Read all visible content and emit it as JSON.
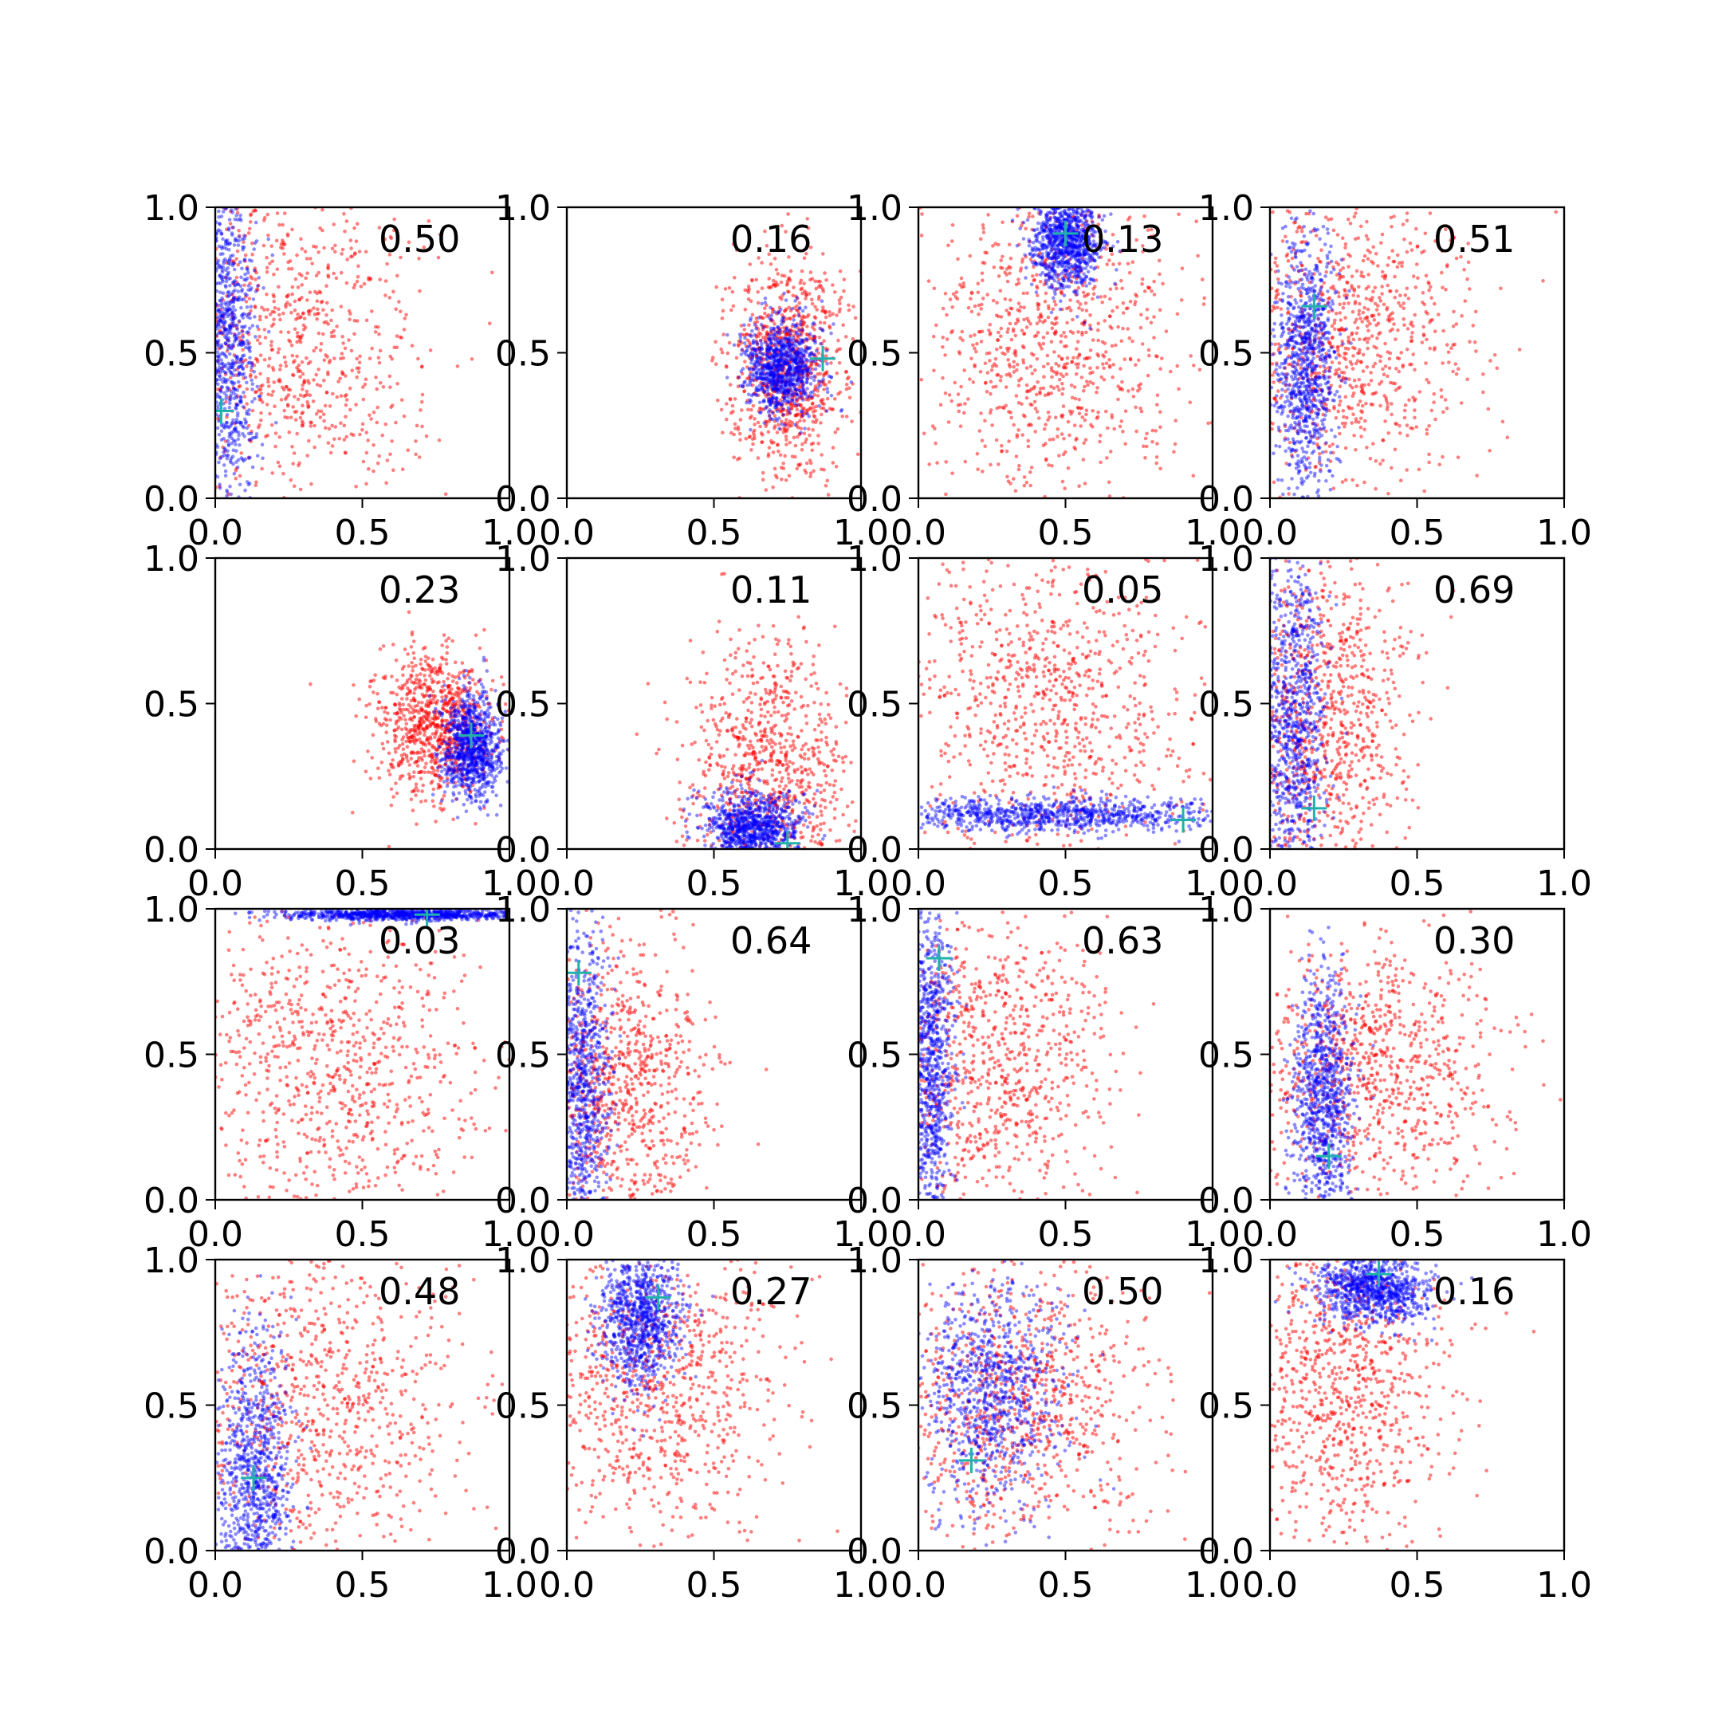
{
  "chart_data": {
    "type": "scatter",
    "layout": "4x4 grid of scatter panels",
    "xlim": [
      0,
      1
    ],
    "ylim": [
      0,
      1
    ],
    "xticks": [
      "0.0",
      "0.5",
      "1.0"
    ],
    "yticks": [
      "0.0",
      "0.5",
      "1.0"
    ],
    "grid": false,
    "series_colors": {
      "red": "#ff0000",
      "blue": "#0000ff",
      "marker": "#20b2aa"
    },
    "panels": [
      {
        "label": "0.50",
        "marker": [
          0.02,
          0.3
        ],
        "red": {
          "center": [
            0.25,
            0.5
          ],
          "spread": [
            0.22,
            0.3
          ]
        },
        "blue": {
          "center": [
            0.04,
            0.55
          ],
          "spread": [
            0.05,
            0.32
          ]
        }
      },
      {
        "label": "0.16",
        "marker": [
          0.87,
          0.48
        ],
        "red": {
          "center": [
            0.75,
            0.45
          ],
          "spread": [
            0.1,
            0.18
          ]
        },
        "blue": {
          "center": [
            0.73,
            0.45
          ],
          "spread": [
            0.06,
            0.08
          ]
        }
      },
      {
        "label": "0.13",
        "marker": [
          0.5,
          0.91
        ],
        "red": {
          "center": [
            0.45,
            0.55
          ],
          "spread": [
            0.22,
            0.28
          ]
        },
        "blue": {
          "center": [
            0.5,
            0.88
          ],
          "spread": [
            0.06,
            0.08
          ]
        }
      },
      {
        "label": "0.51",
        "marker": [
          0.15,
          0.66
        ],
        "red": {
          "center": [
            0.25,
            0.55
          ],
          "spread": [
            0.22,
            0.25
          ]
        },
        "blue": {
          "center": [
            0.12,
            0.45
          ],
          "spread": [
            0.05,
            0.22
          ]
        }
      },
      {
        "label": "0.23",
        "marker": [
          0.87,
          0.39
        ],
        "red": {
          "center": [
            0.75,
            0.43
          ],
          "spread": [
            0.1,
            0.12
          ]
        },
        "blue": {
          "center": [
            0.87,
            0.35
          ],
          "spread": [
            0.05,
            0.09
          ]
        }
      },
      {
        "label": "0.11",
        "marker": [
          0.75,
          0.02
        ],
        "red": {
          "center": [
            0.68,
            0.25
          ],
          "spread": [
            0.14,
            0.22
          ]
        },
        "blue": {
          "center": [
            0.63,
            0.08
          ],
          "spread": [
            0.08,
            0.06
          ]
        }
      },
      {
        "label": "0.05",
        "marker": [
          0.9,
          0.1
        ],
        "red": {
          "center": [
            0.45,
            0.5
          ],
          "spread": [
            0.25,
            0.28
          ]
        },
        "blue": {
          "center": [
            0.45,
            0.12
          ],
          "spread": [
            0.3,
            0.03
          ]
        }
      },
      {
        "label": "0.69",
        "marker": [
          0.15,
          0.14
        ],
        "red": {
          "center": [
            0.18,
            0.45
          ],
          "spread": [
            0.15,
            0.28
          ]
        },
        "blue": {
          "center": [
            0.08,
            0.45
          ],
          "spread": [
            0.06,
            0.3
          ]
        }
      },
      {
        "label": "0.03",
        "marker": [
          0.72,
          0.98
        ],
        "red": {
          "center": [
            0.4,
            0.45
          ],
          "spread": [
            0.25,
            0.28
          ]
        },
        "blue": {
          "center": [
            0.65,
            0.98
          ],
          "spread": [
            0.22,
            0.01
          ]
        }
      },
      {
        "label": "0.64",
        "marker": [
          0.04,
          0.78
        ],
        "red": {
          "center": [
            0.18,
            0.4
          ],
          "spread": [
            0.15,
            0.28
          ]
        },
        "blue": {
          "center": [
            0.05,
            0.35
          ],
          "spread": [
            0.05,
            0.3
          ]
        }
      },
      {
        "label": "0.63",
        "marker": [
          0.07,
          0.83
        ],
        "red": {
          "center": [
            0.25,
            0.5
          ],
          "spread": [
            0.2,
            0.28
          ]
        },
        "blue": {
          "center": [
            0.04,
            0.45
          ],
          "spread": [
            0.04,
            0.3
          ]
        }
      },
      {
        "label": "0.30",
        "marker": [
          0.2,
          0.15
        ],
        "red": {
          "center": [
            0.35,
            0.45
          ],
          "spread": [
            0.22,
            0.22
          ]
        },
        "blue": {
          "center": [
            0.18,
            0.35
          ],
          "spread": [
            0.05,
            0.22
          ]
        }
      },
      {
        "label": "0.48",
        "marker": [
          0.13,
          0.25
        ],
        "red": {
          "center": [
            0.35,
            0.5
          ],
          "spread": [
            0.25,
            0.3
          ]
        },
        "blue": {
          "center": [
            0.13,
            0.25
          ],
          "spread": [
            0.06,
            0.25
          ]
        }
      },
      {
        "label": "0.27",
        "marker": [
          0.31,
          0.87
        ],
        "red": {
          "center": [
            0.3,
            0.55
          ],
          "spread": [
            0.22,
            0.28
          ]
        },
        "blue": {
          "center": [
            0.25,
            0.8
          ],
          "spread": [
            0.07,
            0.12
          ]
        }
      },
      {
        "label": "0.50",
        "marker": [
          0.18,
          0.31
        ],
        "red": {
          "center": [
            0.35,
            0.5
          ],
          "spread": [
            0.22,
            0.25
          ]
        },
        "blue": {
          "center": [
            0.25,
            0.55
          ],
          "spread": [
            0.12,
            0.2
          ]
        }
      },
      {
        "label": "0.16",
        "marker": [
          0.37,
          0.95
        ],
        "red": {
          "center": [
            0.25,
            0.55
          ],
          "spread": [
            0.18,
            0.28
          ]
        },
        "blue": {
          "center": [
            0.35,
            0.9
          ],
          "spread": [
            0.1,
            0.06
          ]
        }
      }
    ]
  }
}
